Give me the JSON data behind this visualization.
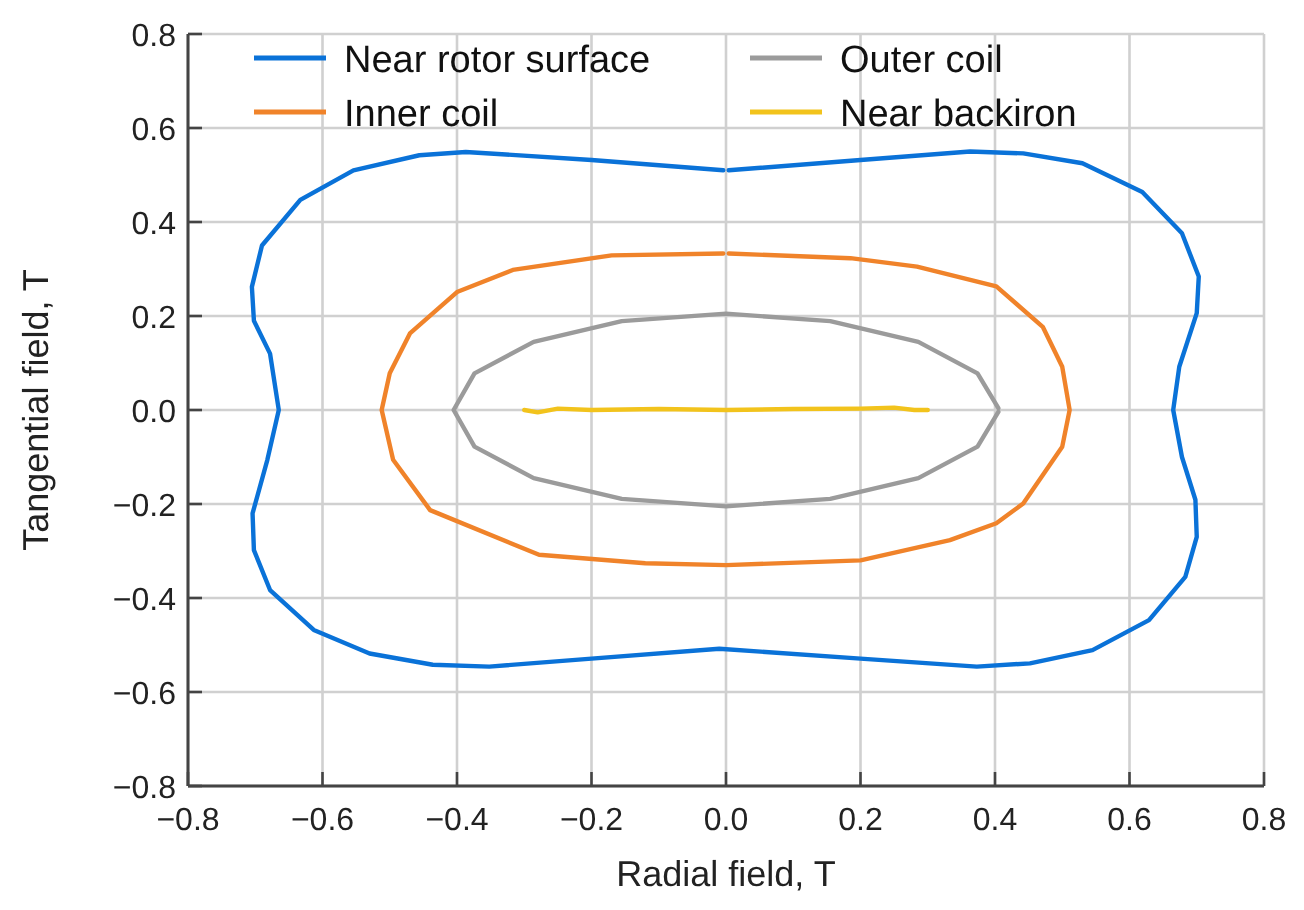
{
  "chart_data": {
    "type": "line",
    "xlabel": "Radial field, T",
    "ylabel": "Tangential field, T",
    "xlim": [
      -0.8,
      0.8
    ],
    "ylim": [
      -0.8,
      0.8
    ],
    "xticks": [
      {
        "value": -0.8,
        "label": "−0.8"
      },
      {
        "value": -0.6,
        "label": "−0.6"
      },
      {
        "value": -0.4,
        "label": "−0.4"
      },
      {
        "value": -0.2,
        "label": "−0.2"
      },
      {
        "value": 0,
        "label": "0.0"
      },
      0.2,
      0.4,
      0.6,
      0.8
    ],
    "yticks": [
      {
        "value": -0.8,
        "label": "−0.8"
      },
      {
        "value": -0.6,
        "label": "−0.6"
      },
      {
        "value": -0.4,
        "label": "−0.4"
      },
      {
        "value": -0.2,
        "label": "−0.2"
      },
      {
        "value": 0,
        "label": "0.0"
      },
      0.2,
      0.4,
      0.6,
      0.8
    ],
    "grid": true,
    "legend": "top",
    "marker": "none",
    "line_style": "solid",
    "series": [
      {
        "name": "Near rotor surface",
        "color": "#0a72d8",
        "x": [
          -0.004,
          -0.2,
          -0.387,
          -0.456,
          -0.554,
          -0.633,
          -0.69,
          -0.705,
          -0.702,
          -0.678,
          -0.665,
          -0.682,
          -0.704,
          -0.702,
          -0.678,
          -0.613,
          -0.53,
          -0.436,
          -0.352,
          -0.2,
          -0.01,
          0.2,
          0.373,
          0.452,
          0.545,
          0.629,
          0.683,
          0.7,
          0.698,
          0.678,
          0.665,
          0.674,
          0.7,
          0.703,
          0.678,
          0.619,
          0.53,
          0.442,
          0.363,
          0.2,
          0.004
        ],
        "values": [
          0.51,
          0.532,
          0.549,
          0.542,
          0.51,
          0.447,
          0.35,
          0.262,
          0.19,
          0.12,
          0,
          -0.106,
          -0.22,
          -0.298,
          -0.383,
          -0.468,
          -0.518,
          -0.542,
          -0.546,
          -0.529,
          -0.508,
          -0.529,
          -0.546,
          -0.539,
          -0.511,
          -0.447,
          -0.355,
          -0.27,
          -0.191,
          -0.1,
          0,
          0.092,
          0.206,
          0.284,
          0.376,
          0.464,
          0.525,
          0.546,
          0.55,
          0.532,
          0.51
        ]
      },
      {
        "name": "Inner coil",
        "color": "#f0832a",
        "x": [
          -0.004,
          -0.17,
          -0.317,
          -0.4,
          -0.47,
          -0.5,
          -0.512,
          -0.495,
          -0.44,
          -0.278,
          -0.12,
          0,
          0.2,
          0.333,
          0.402,
          0.442,
          0.5,
          0.511,
          0.5,
          0.471,
          0.402,
          0.284,
          0.185,
          0.004
        ],
        "values": [
          0.333,
          0.329,
          0.298,
          0.251,
          0.163,
          0.078,
          0,
          -0.106,
          -0.213,
          -0.308,
          -0.326,
          -0.33,
          -0.32,
          -0.277,
          -0.241,
          -0.199,
          -0.078,
          0,
          0.092,
          0.177,
          0.263,
          0.305,
          0.323,
          0.333
        ]
      },
      {
        "name": "Outer coil",
        "color": "#9b9b9b",
        "x": [
          0.405,
          0.374,
          0.286,
          0.155,
          0,
          -0.155,
          -0.286,
          -0.374,
          -0.405,
          -0.374,
          -0.286,
          -0.155,
          0,
          0.155,
          0.286,
          0.374,
          0.405
        ],
        "values": [
          0.004,
          0.078,
          0.145,
          0.189,
          0.205,
          0.189,
          0.145,
          0.078,
          0,
          -0.078,
          -0.145,
          -0.189,
          -0.205,
          -0.189,
          -0.145,
          -0.078,
          -0.004
        ]
      },
      {
        "name": "Near backiron",
        "color": "#f2c31c",
        "x": [
          -0.3,
          -0.28,
          -0.25,
          -0.2,
          -0.1,
          0,
          0.1,
          0.2,
          0.25,
          0.28,
          0.3
        ],
        "values": [
          0,
          -0.005,
          0.003,
          0,
          0.002,
          0,
          0.002,
          0.003,
          0.005,
          0,
          0
        ]
      }
    ]
  }
}
